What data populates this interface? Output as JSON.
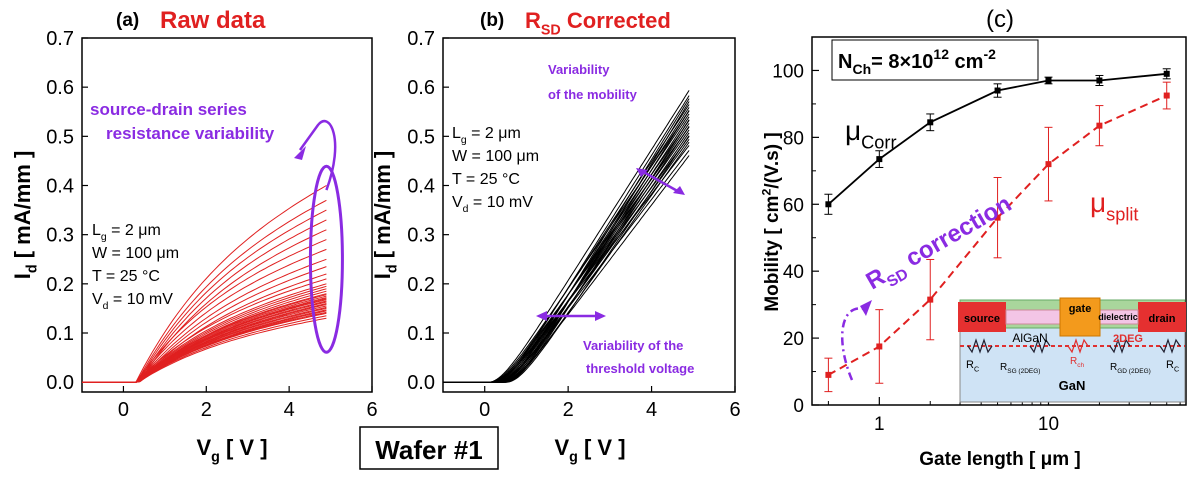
{
  "wafer_label": "Wafer #1",
  "chart_data": [
    {
      "id": "a",
      "type": "line",
      "panel_label": "(a)",
      "title": "Raw data",
      "xlabel": {
        "main": "V",
        "sub": "g",
        "rest": " [ V ]"
      },
      "ylabel": {
        "main": "I",
        "sub": "d",
        "rest": " [ mA/mm ]"
      },
      "xlim": [
        -1,
        6
      ],
      "ylim": [
        -0.02,
        0.7
      ],
      "xticks": [
        0,
        2,
        4,
        6
      ],
      "yticks": [
        0.0,
        0.1,
        0.2,
        0.3,
        0.4,
        0.5,
        0.6,
        0.7
      ],
      "ytick_labels": [
        "0.0",
        "0.1",
        "0.2",
        "0.3",
        "0.4",
        "0.5",
        "0.6",
        "0.7"
      ],
      "line_color": "#e02020",
      "curve_model": "x from -1 to 4.9; near-zero current below ~0.3 V, then rising and saturating toward the end value",
      "end_values": [
        0.4,
        0.37,
        0.35,
        0.33,
        0.31,
        0.29,
        0.27,
        0.25,
        0.235,
        0.22,
        0.21,
        0.2,
        0.195,
        0.19,
        0.185,
        0.18,
        0.178,
        0.175,
        0.172,
        0.17,
        0.168,
        0.165,
        0.163,
        0.16,
        0.158,
        0.155,
        0.152,
        0.15,
        0.147,
        0.145,
        0.142,
        0.14,
        0.135,
        0.13
      ],
      "conditions": [
        {
          "main": "L",
          "sub": "g",
          "rest": " = 2 μm"
        },
        {
          "main": "W = 100 μm",
          "sub": "",
          "rest": ""
        },
        {
          "main": "T = 25 °C",
          "sub": "",
          "rest": ""
        },
        {
          "main": "V",
          "sub": "d",
          "rest": " = 10 mV"
        }
      ],
      "annotation": [
        "source-drain series",
        "resistance variability"
      ],
      "annotation_color": "#8a2be2"
    },
    {
      "id": "b",
      "type": "line",
      "panel_label": "(b)",
      "title": {
        "main": "R",
        "sub": "SD",
        "rest": " Corrected"
      },
      "xlabel": {
        "main": "V",
        "sub": "g",
        "rest": " [ V ]"
      },
      "ylabel": {
        "main": "I",
        "sub": "d",
        "rest": " [ mA/mm ]"
      },
      "xlim": [
        -1,
        6
      ],
      "ylim": [
        -0.02,
        0.7
      ],
      "xticks": [
        0,
        2,
        4,
        6
      ],
      "yticks": [
        0.0,
        0.1,
        0.2,
        0.3,
        0.4,
        0.5,
        0.6,
        0.7
      ],
      "ytick_labels": [
        "0.0",
        "0.1",
        "0.2",
        "0.3",
        "0.4",
        "0.5",
        "0.6",
        "0.7"
      ],
      "line_color": "#000000",
      "curve_model": "zero current below threshold (~0.1–0.5 V), then near-linear rise to the end value at x = 4.9",
      "end_values": [
        0.64,
        0.63,
        0.625,
        0.62,
        0.61,
        0.605,
        0.6,
        0.595,
        0.59,
        0.585,
        0.58,
        0.575,
        0.57,
        0.565,
        0.56,
        0.555,
        0.55,
        0.545,
        0.54,
        0.535,
        0.53,
        0.52,
        0.51,
        0.5
      ],
      "conditions": [
        {
          "main": "L",
          "sub": "g",
          "rest": " = 2 μm"
        },
        {
          "main": "W = 100 μm",
          "sub": "",
          "rest": ""
        },
        {
          "main": "T = 25 °C",
          "sub": "",
          "rest": ""
        },
        {
          "main": "V",
          "sub": "d",
          "rest": " = 10 mV"
        }
      ],
      "annotation_mobility": [
        "Variability",
        "of the mobility"
      ],
      "annotation_threshold": [
        "Variability of the",
        "threshold voltage"
      ],
      "annotation_color": "#8a2be2"
    },
    {
      "id": "c",
      "type": "scatter",
      "panel_label": "(c)",
      "xscale": "log",
      "xlabel": "Gate length [ μm ]",
      "ylabel": {
        "main": "Mobility [ cm",
        "sup": "2",
        "rest": "/(V.s) ]"
      },
      "xlim": [
        0.4,
        65
      ],
      "ylim": [
        0,
        110
      ],
      "xticks": [
        1,
        10
      ],
      "yticks": [
        0,
        20,
        40,
        60,
        80,
        100
      ],
      "nch_label": {
        "a": "N",
        "asub": "Ch",
        "b": "= 8×10",
        "bsup": "12",
        "c": " cm",
        "csup": "-2"
      },
      "x": [
        0.5,
        1,
        2,
        5,
        10,
        20,
        50
      ],
      "series": [
        {
          "name": {
            "main": "μ",
            "sub": "Corr"
          },
          "color": "#000000",
          "style": "solid",
          "values": [
            60,
            73.5,
            84.5,
            94,
            97,
            97,
            99
          ],
          "errors": [
            3,
            2.5,
            2.5,
            2,
            1,
            1.5,
            1.5
          ]
        },
        {
          "name": {
            "main": "μ",
            "sub": "split"
          },
          "color": "#e02020",
          "style": "dashed",
          "values": [
            9,
            17.5,
            31.5,
            56,
            72,
            83.5,
            92.5
          ],
          "errors": [
            5,
            11,
            12,
            12,
            11,
            6,
            4
          ]
        }
      ],
      "correction_label": {
        "main": "R",
        "sub": "SD",
        "rest": " correction"
      },
      "correction_color": "#8a2be2",
      "inset": {
        "gate": "gate",
        "dielectric": "dielectric",
        "source": "source",
        "drain": "drain",
        "algan": "AlGaN",
        "twodeg": "2DEG",
        "gan": "GaN",
        "rc": {
          "main": "R",
          "sub": "C"
        },
        "rch": {
          "main": "R",
          "sub": "ch"
        },
        "rsg": {
          "main": "R",
          "sub": "SG (2DEG)"
        },
        "rgd": {
          "main": "R",
          "sub": "GD (2DEG)"
        }
      }
    }
  ]
}
